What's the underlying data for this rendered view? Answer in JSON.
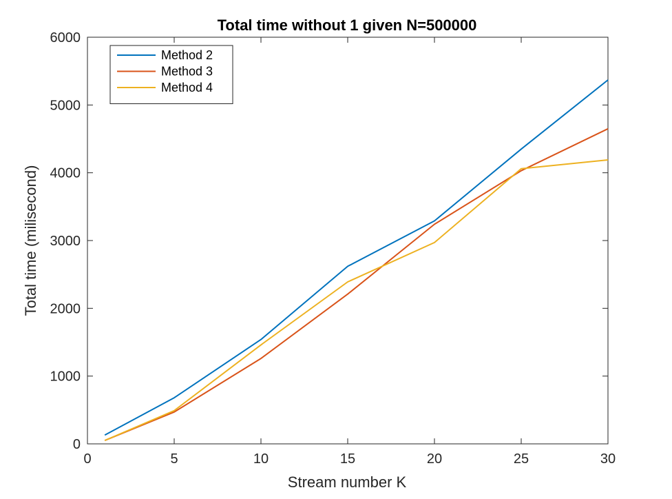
{
  "chart_data": {
    "type": "line",
    "title": "Total time without 1 given N=500000",
    "xlabel": "Stream number K",
    "ylabel": "Total time (milisecond)",
    "xlim": [
      0,
      30
    ],
    "ylim": [
      0,
      6000
    ],
    "xticks": [
      0,
      5,
      10,
      15,
      20,
      25,
      30
    ],
    "yticks": [
      0,
      1000,
      2000,
      3000,
      4000,
      5000,
      6000
    ],
    "x": [
      1,
      5,
      10,
      15,
      20,
      25,
      30
    ],
    "grid": false,
    "legend_position": "top-left",
    "series": [
      {
        "name": "Method 2",
        "color": "#0072BD",
        "values": [
          130,
          680,
          1540,
          2620,
          3290,
          4350,
          5370
        ]
      },
      {
        "name": "Method 3",
        "color": "#D95319",
        "values": [
          50,
          470,
          1260,
          2210,
          3240,
          4030,
          4650
        ]
      },
      {
        "name": "Method 4",
        "color": "#EDB120",
        "values": [
          50,
          490,
          1460,
          2390,
          2970,
          4060,
          4190
        ]
      }
    ]
  }
}
